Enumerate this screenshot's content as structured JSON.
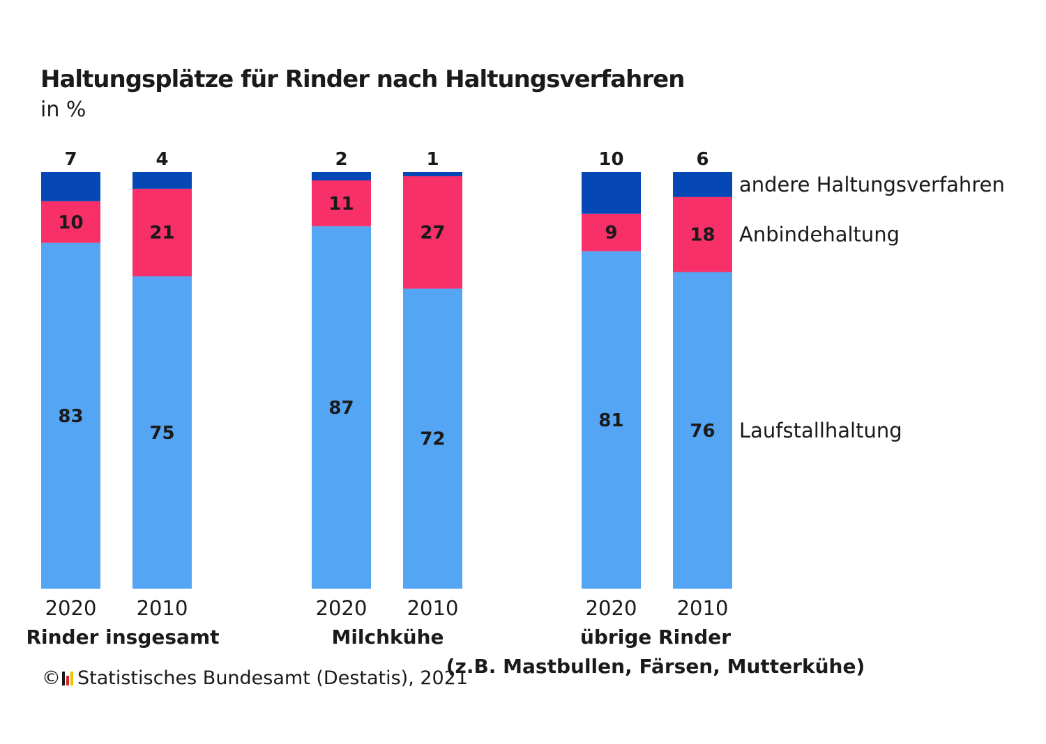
{
  "chart_data": {
    "type": "bar",
    "stacked": true,
    "title": "Haltungsplätze für Rinder nach Haltungsverfahren",
    "subtitle": "in %",
    "groups": [
      {
        "label": "Rinder insgesamt",
        "categories": [
          "2020",
          "2010"
        ]
      },
      {
        "label": "Milchkühe",
        "categories": [
          "2020",
          "2010"
        ]
      },
      {
        "label": "übrige Rinder\n(z.B. Mastbullen, Färsen, Mutterkühe)",
        "categories": [
          "2020",
          "2010"
        ]
      }
    ],
    "categories": [
      "2020",
      "2010",
      "2020",
      "2010",
      "2020",
      "2010"
    ],
    "series": [
      {
        "name": "Laufstallhaltung",
        "color": "#55a5f5",
        "values": [
          83,
          75,
          87,
          72,
          81,
          76
        ]
      },
      {
        "name": "Anbindehaltung",
        "color": "#f8306a",
        "values": [
          10,
          21,
          11,
          27,
          9,
          18
        ]
      },
      {
        "name": "andere Haltungsverfahren",
        "color": "#0447b5",
        "values": [
          7,
          4,
          2,
          1,
          10,
          6
        ]
      }
    ],
    "ylim": [
      0,
      100
    ],
    "legend": "right",
    "grid": false
  },
  "footer": {
    "copyright_symbol": "©",
    "source": "Statistisches Bundesamt (Destatis), 2021",
    "logo_colors": [
      "#1a1a1a",
      "#d8262b",
      "#f2c200"
    ]
  }
}
